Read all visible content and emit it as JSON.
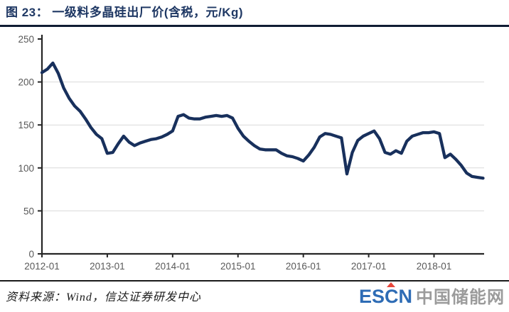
{
  "header": {
    "title": "图 23： 一级料多晶硅出厂价(含税，元/Kg)"
  },
  "chart_data": {
    "type": "line",
    "title": "一级料多晶硅出厂价(含税，元/Kg)",
    "series_name": "一级料多晶硅出厂价",
    "unit": "元/Kg",
    "grid": "horizontal",
    "legend": "none",
    "line_color": "#18305c",
    "axis_color": "#262626",
    "grid_color": "#d9d9d9",
    "tick_label_color": "#595959",
    "ylim": [
      0,
      250
    ],
    "y_ticks": [
      0,
      50,
      100,
      150,
      200,
      250
    ],
    "x_tick_labels": [
      "2012-01",
      "2013-01",
      "2014-01",
      "2015-01",
      "2016-01",
      "2017-01",
      "2018-01"
    ],
    "x": [
      "2012-01",
      "2012-02",
      "2012-03",
      "2012-04",
      "2012-05",
      "2012-06",
      "2012-07",
      "2012-08",
      "2012-09",
      "2012-10",
      "2012-11",
      "2012-12",
      "2013-01",
      "2013-02",
      "2013-03",
      "2013-04",
      "2013-05",
      "2013-06",
      "2013-07",
      "2013-08",
      "2013-09",
      "2013-10",
      "2013-11",
      "2013-12",
      "2014-01",
      "2014-02",
      "2014-03",
      "2014-04",
      "2014-05",
      "2014-06",
      "2014-07",
      "2014-08",
      "2014-09",
      "2014-10",
      "2014-11",
      "2014-12",
      "2015-01",
      "2015-02",
      "2015-03",
      "2015-04",
      "2015-05",
      "2015-06",
      "2015-07",
      "2015-08",
      "2015-09",
      "2015-10",
      "2015-11",
      "2015-12",
      "2016-01",
      "2016-02",
      "2016-03",
      "2016-04",
      "2016-05",
      "2016-06",
      "2016-07",
      "2016-08",
      "2016-09",
      "2016-10",
      "2016-11",
      "2016-12",
      "2017-01",
      "2017-02",
      "2017-03",
      "2017-04",
      "2017-05",
      "2017-06",
      "2017-07",
      "2017-08",
      "2017-09",
      "2017-10",
      "2017-11",
      "2017-12",
      "2018-01",
      "2018-02",
      "2018-03",
      "2018-04",
      "2018-05",
      "2018-06",
      "2018-07",
      "2018-08",
      "2018-09",
      "2018-10"
    ],
    "values": [
      211,
      215,
      222,
      210,
      193,
      181,
      172,
      166,
      157,
      147,
      139,
      134,
      117,
      118,
      128,
      137,
      130,
      126,
      129,
      131,
      133,
      134,
      136,
      139,
      143,
      160,
      162,
      158,
      157,
      157,
      159,
      160,
      161,
      160,
      161,
      158,
      146,
      137,
      131,
      126,
      122,
      121,
      121,
      121,
      117,
      114,
      113,
      111,
      108,
      115,
      124,
      136,
      140,
      139,
      137,
      135,
      93,
      118,
      132,
      137,
      140,
      143,
      134,
      118,
      116,
      120,
      117,
      131,
      137,
      139,
      141,
      141,
      142,
      140,
      112,
      116,
      110,
      103,
      94,
      90,
      89,
      88
    ]
  },
  "footer": {
    "source": "资料来源：Wind，信达证券研发中心",
    "logo": {
      "es": "ES",
      "c": "C",
      "n": "N",
      "cn": "中国储能网"
    }
  }
}
